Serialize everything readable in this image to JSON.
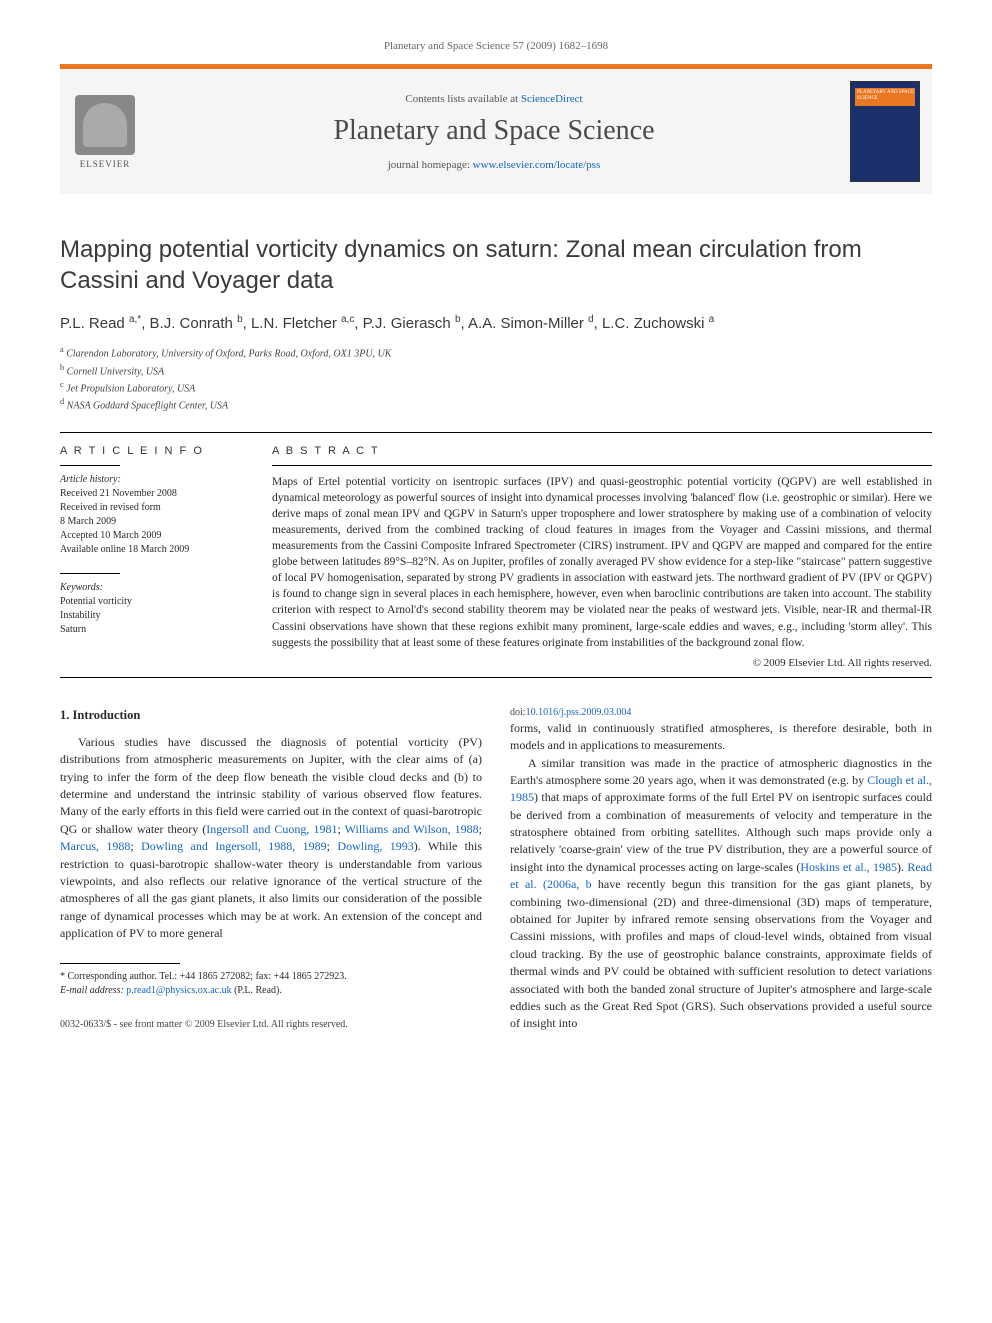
{
  "running_head": "Planetary and Space Science 57 (2009) 1682–1698",
  "header": {
    "contents_prefix": "Contents lists available at ",
    "contents_link": "ScienceDirect",
    "journal": "Planetary and Space Science",
    "homepage_prefix": "journal homepage: ",
    "homepage_link": "www.elsevier.com/locate/pss",
    "publisher": "ELSEVIER",
    "cover_label": "PLANETARY AND SPACE SCIENCE"
  },
  "title": "Mapping potential vorticity dynamics on saturn: Zonal mean circulation from Cassini and Voyager data",
  "authors_html": "P.L. Read <sup>a,*</sup>, B.J. Conrath <sup>b</sup>, L.N. Fletcher <sup>a,c</sup>, P.J. Gierasch <sup>b</sup>, A.A. Simon-Miller <sup>d</sup>, L.C. Zuchowski <sup>a</sup>",
  "affiliations": [
    {
      "sup": "a",
      "text": "Clarendon Laboratory, University of Oxford, Parks Road, Oxford, OX1 3PU, UK"
    },
    {
      "sup": "b",
      "text": "Cornell University, USA"
    },
    {
      "sup": "c",
      "text": "Jet Propulsion Laboratory, USA"
    },
    {
      "sup": "d",
      "text": "NASA Goddard Spaceflight Center, USA"
    }
  ],
  "info": {
    "head": "A R T I C L E   I N F O",
    "history_label": "Article history:",
    "history": [
      "Received 21 November 2008",
      "Received in revised form",
      "8 March 2009",
      "Accepted 10 March 2009",
      "Available online 18 March 2009"
    ],
    "keywords_label": "Keywords:",
    "keywords": [
      "Potential vorticity",
      "Instability",
      "Saturn"
    ]
  },
  "abstract": {
    "head": "A B S T R A C T",
    "text": "Maps of Ertel potential vorticity on isentropic surfaces (IPV) and quasi-geostrophic potential vorticity (QGPV) are well established in dynamical meteorology as powerful sources of insight into dynamical processes involving 'balanced' flow (i.e. geostrophic or similar). Here we derive maps of zonal mean IPV and QGPV in Saturn's upper troposphere and lower stratosphere by making use of a combination of velocity measurements, derived from the combined tracking of cloud features in images from the Voyager and Cassini missions, and thermal measurements from the Cassini Composite Infrared Spectrometer (CIRS) instrument. IPV and QGPV are mapped and compared for the entire globe between latitudes 89°S–82°N. As on Jupiter, profiles of zonally averaged PV show evidence for a step-like \"staircase\" pattern suggestive of local PV homogenisation, separated by strong PV gradients in association with eastward jets. The northward gradient of PV (IPV or QGPV) is found to change sign in several places in each hemisphere, however, even when baroclinic contributions are taken into account. The stability criterion with respect to Arnol'd's second stability theorem may be violated near the peaks of westward jets. Visible, near-IR and thermal-IR Cassini observations have shown that these regions exhibit many prominent, large-scale eddies and waves, e.g., including 'storm alley'. This suggests the possibility that at least some of these features originate from instabilities of the background zonal flow.",
    "copyright": "© 2009 Elsevier Ltd. All rights reserved."
  },
  "section1": {
    "number": "1.",
    "title": "Introduction",
    "p1": "Various studies have discussed the diagnosis of potential vorticity (PV) distributions from atmospheric measurements on Jupiter, with the clear aims of (a) trying to infer the form of the deep flow beneath the visible cloud decks and (b) to determine and understand the intrinsic stability of various observed flow features. Many of the early efforts in this field were carried out in the context of quasi-barotropic QG or shallow water theory (",
    "c1": "Ingersoll and Cuong, 1981",
    "p1b": "; ",
    "c2": "Williams and Wilson, 1988",
    "p1c": "; ",
    "c3": "Marcus, 1988",
    "p1d": "; ",
    "c4": "Dowling and Ingersoll, 1988, 1989",
    "p1e": "; ",
    "c5": "Dowling, 1993",
    "p1f": "). While this restriction to quasi-barotropic shallow-water theory is understandable from various viewpoints, and also reflects our relative ignorance of the vertical structure of the atmospheres of all the gas giant planets, it also limits our consideration of the possible range of dynamical processes which may be at work. An extension of the concept and application of PV to more general",
    "p2": "forms, valid in continuously stratified atmospheres, is therefore desirable, both in models and in applications to measurements.",
    "p3a": "A similar transition was made in the practice of atmospheric diagnostics in the Earth's atmosphere some 20 years ago, when it was demonstrated (e.g. by ",
    "c6": "Clough et al., 1985",
    "p3b": ") that maps of approximate forms of the full Ertel PV on isentropic surfaces could be derived from a combination of measurements of velocity and temperature in the stratosphere obtained from orbiting satellites. Although such maps provide only a relatively 'coarse-grain' view of the true PV distribution, they are a powerful source of insight into the dynamical processes acting on large-scales (",
    "c7": "Hoskins et al., 1985",
    "p3c": "). ",
    "c8": "Read et al. (2006a, b",
    "p3d": " have recently begun this transition for the gas giant planets, by combining two-dimensional (2D) and three-dimensional (3D) maps of temperature, obtained for Jupiter by infrared remote sensing observations from the Voyager and Cassini missions, with profiles and maps of cloud-level winds, obtained from visual cloud tracking. By the use of geostrophic balance constraints, approximate fields of thermal winds and PV could be obtained with sufficient resolution to detect variations associated with both the banded zonal structure of Jupiter's atmosphere and large-scale eddies such as the Great Red Spot (GRS). Such observations provided a useful source of insight into"
  },
  "footnote": {
    "marker": "*",
    "text": " Corresponding author. Tel.: +44 1865 272082; fax: +44 1865 272923.",
    "email_label": "E-mail address:",
    "email": "p.read1@physics.ox.ac.uk",
    "email_who": "(P.L. Read)."
  },
  "footer": {
    "issn": "0032-0633/$ - see front matter © 2009 Elsevier Ltd. All rights reserved.",
    "doi_label": "doi:",
    "doi": "10.1016/j.pss.2009.03.004"
  },
  "colors": {
    "accent_orange": "#e87722",
    "link_blue": "#1565c0",
    "header_bg": "#f5f5f5",
    "text": "#2a2a2a",
    "cover_bg": "#1b2f6b"
  }
}
